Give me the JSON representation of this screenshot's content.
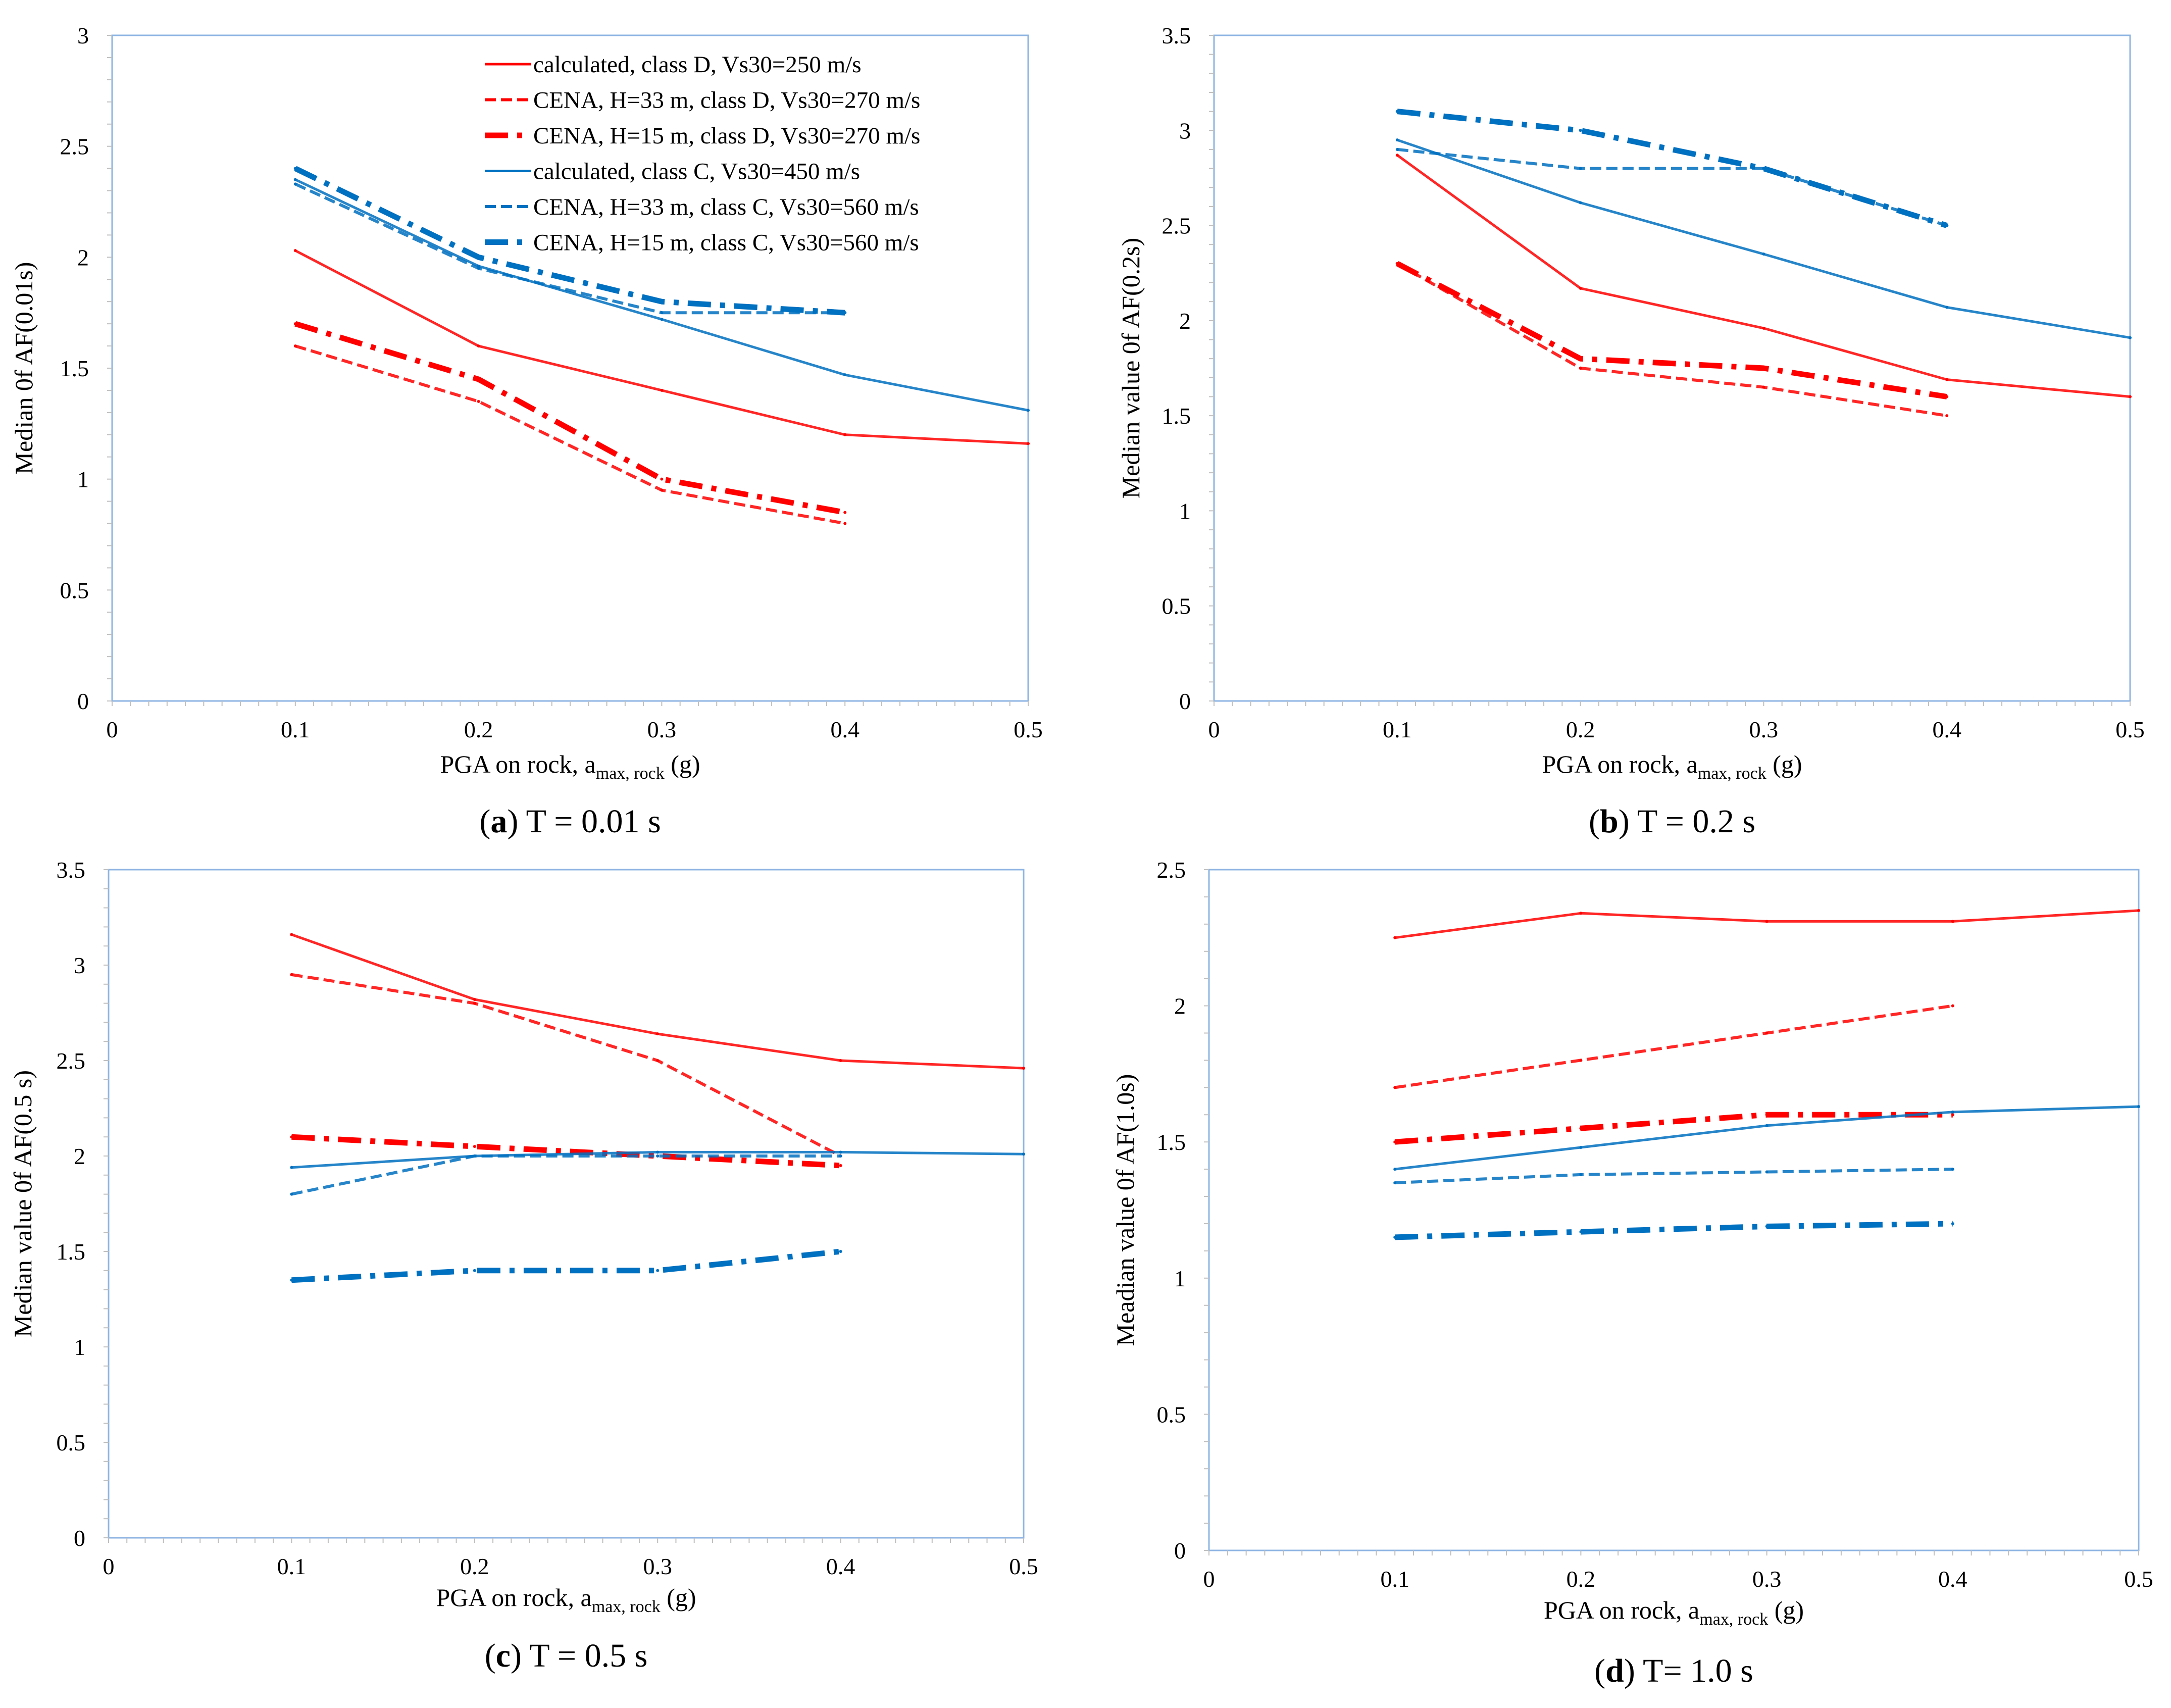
{
  "legend": [
    "calculated, class D, Vs30=250 m/s",
    "CENA, H=33 m, class D, Vs30=270 m/s",
    "CENA, H=15 m, class D, Vs30=270 m/s",
    "calculated, class C, Vs30=450 m/s",
    "CENA, H=33 m, class C, Vs30=560 m/s",
    "CENA, H=15 m, class C, Vs30=560 m/s"
  ],
  "colors": {
    "red": "#ff0000",
    "blue": "#0070c0",
    "plot_border": "#8eb4e3"
  },
  "chart_data": [
    {
      "type": "line",
      "panel_letter": "a",
      "caption": "T = 0.01 s",
      "xlabel_main": "PGA on rock, a",
      "xlabel_sub": "max, rock",
      "xlabel_tail": " (g)",
      "ylabel": "Median 0f AF(0.01s)",
      "xlim": [
        0,
        0.5
      ],
      "ylim": [
        0,
        3
      ],
      "xticks": [
        0,
        0.1,
        0.2,
        0.3,
        0.4,
        0.5
      ],
      "yticks": [
        0,
        0.5,
        1,
        1.5,
        2,
        2.5,
        3
      ],
      "show_legend": true,
      "series": [
        {
          "name": "calculated, class D, Vs30=250 m/s",
          "style": "calc",
          "color": "red",
          "x": [
            0.1,
            0.2,
            0.3,
            0.4,
            0.5
          ],
          "y": [
            2.03,
            1.6,
            1.4,
            1.2,
            1.16
          ]
        },
        {
          "name": "CENA, H=33 m, class D, Vs30=270 m/s",
          "style": "dash",
          "color": "red",
          "x": [
            0.1,
            0.2,
            0.3,
            0.4
          ],
          "y": [
            1.6,
            1.35,
            0.95,
            0.8
          ]
        },
        {
          "name": "CENA, H=15 m, class D, Vs30=270 m/s",
          "style": "dashdot",
          "color": "red",
          "x": [
            0.1,
            0.2,
            0.3,
            0.4
          ],
          "y": [
            1.7,
            1.45,
            1.0,
            0.85
          ]
        },
        {
          "name": "calculated, class C, Vs30=450 m/s",
          "style": "calc",
          "color": "blue",
          "x": [
            0.1,
            0.2,
            0.3,
            0.4,
            0.5
          ],
          "y": [
            2.35,
            1.96,
            1.72,
            1.47,
            1.31
          ]
        },
        {
          "name": "CENA, H=33 m, class C, Vs30=560 m/s",
          "style": "dash",
          "color": "blue",
          "x": [
            0.1,
            0.2,
            0.3,
            0.4
          ],
          "y": [
            2.33,
            1.95,
            1.75,
            1.75
          ]
        },
        {
          "name": "CENA, H=15 m, class C, Vs30=560 m/s",
          "style": "dashdot",
          "color": "blue",
          "x": [
            0.1,
            0.2,
            0.3,
            0.4
          ],
          "y": [
            2.4,
            2.0,
            1.8,
            1.75
          ]
        }
      ]
    },
    {
      "type": "line",
      "panel_letter": "b",
      "caption": "T = 0.2 s",
      "xlabel_main": "PGA on rock, a",
      "xlabel_sub": "max, rock",
      "xlabel_tail": " (g)",
      "ylabel": "Median value 0f AF(0.2s)",
      "xlim": [
        0,
        0.5
      ],
      "ylim": [
        0,
        3.5
      ],
      "xticks": [
        0,
        0.1,
        0.2,
        0.3,
        0.4,
        0.5
      ],
      "yticks": [
        0,
        0.5,
        1,
        1.5,
        2,
        2.5,
        3,
        3.5
      ],
      "show_legend": false,
      "series": [
        {
          "name": "calculated, class D, Vs30=250 m/s",
          "style": "calc",
          "color": "red",
          "x": [
            0.1,
            0.2,
            0.3,
            0.4,
            0.5
          ],
          "y": [
            2.87,
            2.17,
            1.96,
            1.69,
            1.6
          ]
        },
        {
          "name": "CENA, H=33 m, class D, Vs30=270 m/s",
          "style": "dash",
          "color": "red",
          "x": [
            0.1,
            0.2,
            0.3,
            0.4
          ],
          "y": [
            2.3,
            1.75,
            1.65,
            1.5
          ]
        },
        {
          "name": "CENA, H=15 m, class D, Vs30=270 m/s",
          "style": "dashdot",
          "color": "red",
          "x": [
            0.1,
            0.2,
            0.3,
            0.4
          ],
          "y": [
            2.3,
            1.8,
            1.75,
            1.6
          ]
        },
        {
          "name": "calculated, class C, Vs30=450 m/s",
          "style": "calc",
          "color": "blue",
          "x": [
            0.1,
            0.2,
            0.3,
            0.4,
            0.5
          ],
          "y": [
            2.95,
            2.62,
            2.35,
            2.07,
            1.91
          ]
        },
        {
          "name": "CENA, H=33 m, class C, Vs30=560 m/s",
          "style": "dash",
          "color": "blue",
          "x": [
            0.1,
            0.2,
            0.3,
            0.4
          ],
          "y": [
            2.9,
            2.8,
            2.8,
            2.5
          ]
        },
        {
          "name": "CENA, H=15 m, class C, Vs30=560 m/s",
          "style": "dashdot",
          "color": "blue",
          "x": [
            0.1,
            0.2,
            0.3,
            0.4
          ],
          "y": [
            3.1,
            3.0,
            2.8,
            2.5
          ]
        }
      ]
    },
    {
      "type": "line",
      "panel_letter": "c",
      "caption": "T = 0.5 s",
      "xlabel_main": "PGA on rock, a",
      "xlabel_sub": "max, rock",
      "xlabel_tail": " (g)",
      "ylabel": "Median value 0f AF(0.5 s)",
      "xlim": [
        0,
        0.5
      ],
      "ylim": [
        0,
        3.5
      ],
      "xticks": [
        0,
        0.1,
        0.2,
        0.3,
        0.4,
        0.5
      ],
      "yticks": [
        0,
        0.5,
        1,
        1.5,
        2,
        2.5,
        3,
        3.5
      ],
      "show_legend": false,
      "series": [
        {
          "name": "calculated, class D, Vs30=250 m/s",
          "style": "calc",
          "color": "red",
          "x": [
            0.1,
            0.2,
            0.3,
            0.4,
            0.5
          ],
          "y": [
            3.16,
            2.82,
            2.64,
            2.5,
            2.46
          ]
        },
        {
          "name": "CENA, H=33 m, class D, Vs30=270 m/s",
          "style": "dash",
          "color": "red",
          "x": [
            0.1,
            0.2,
            0.3,
            0.4
          ],
          "y": [
            2.95,
            2.8,
            2.5,
            2.0
          ]
        },
        {
          "name": "CENA, H=15 m, class D, Vs30=270 m/s",
          "style": "dashdot",
          "color": "red",
          "x": [
            0.1,
            0.2,
            0.3,
            0.4
          ],
          "y": [
            2.1,
            2.05,
            2.0,
            1.95
          ]
        },
        {
          "name": "calculated, class C, Vs30=450 m/s",
          "style": "calc",
          "color": "blue",
          "x": [
            0.1,
            0.2,
            0.3,
            0.4,
            0.5
          ],
          "y": [
            1.94,
            2.0,
            2.02,
            2.02,
            2.01
          ]
        },
        {
          "name": "CENA, H=33 m, class C, Vs30=560 m/s",
          "style": "dash",
          "color": "blue",
          "x": [
            0.1,
            0.2,
            0.3,
            0.4
          ],
          "y": [
            1.8,
            2.0,
            2.0,
            2.0
          ]
        },
        {
          "name": "CENA, H=15 m, class C, Vs30=560 m/s",
          "style": "dashdot",
          "color": "blue",
          "x": [
            0.1,
            0.2,
            0.3,
            0.4
          ],
          "y": [
            1.35,
            1.4,
            1.4,
            1.5
          ]
        }
      ]
    },
    {
      "type": "line",
      "panel_letter": "d",
      "caption": "T= 1.0 s",
      "xlabel_main": "PGA on rock, a",
      "xlabel_sub": "max, rock",
      "xlabel_tail": " (g)",
      "ylabel": "Meadian value 0f AF(1.0s)",
      "xlim": [
        0,
        0.5
      ],
      "ylim": [
        0,
        2.5
      ],
      "xticks": [
        0,
        0.1,
        0.2,
        0.3,
        0.4,
        0.5
      ],
      "yticks": [
        0,
        0.5,
        1,
        1.5,
        2,
        2.5
      ],
      "show_legend": false,
      "series": [
        {
          "name": "calculated, class D, Vs30=250 m/s",
          "style": "calc",
          "color": "red",
          "x": [
            0.1,
            0.2,
            0.3,
            0.4,
            0.5
          ],
          "y": [
            2.25,
            2.34,
            2.31,
            2.31,
            2.35
          ]
        },
        {
          "name": "CENA, H=33 m, class D, Vs30=270 m/s",
          "style": "dash",
          "color": "red",
          "x": [
            0.1,
            0.2,
            0.3,
            0.4
          ],
          "y": [
            1.7,
            1.8,
            1.9,
            2.0
          ]
        },
        {
          "name": "CENA, H=15 m, class D, Vs30=270 m/s",
          "style": "dashdot",
          "color": "red",
          "x": [
            0.1,
            0.2,
            0.3,
            0.4
          ],
          "y": [
            1.5,
            1.55,
            1.6,
            1.6
          ]
        },
        {
          "name": "calculated, class C, Vs30=450 m/s",
          "style": "calc",
          "color": "blue",
          "x": [
            0.1,
            0.2,
            0.3,
            0.4,
            0.5
          ],
          "y": [
            1.4,
            1.48,
            1.56,
            1.61,
            1.63
          ]
        },
        {
          "name": "CENA, H=33 m, class C, Vs30=560 m/s",
          "style": "dash",
          "color": "blue",
          "x": [
            0.1,
            0.2,
            0.3,
            0.4
          ],
          "y": [
            1.35,
            1.38,
            1.39,
            1.4
          ]
        },
        {
          "name": "CENA, H=15 m, class C, Vs30=560 m/s",
          "style": "dashdot",
          "color": "blue",
          "x": [
            0.1,
            0.2,
            0.3,
            0.4
          ],
          "y": [
            1.15,
            1.17,
            1.19,
            1.2
          ]
        }
      ]
    }
  ]
}
